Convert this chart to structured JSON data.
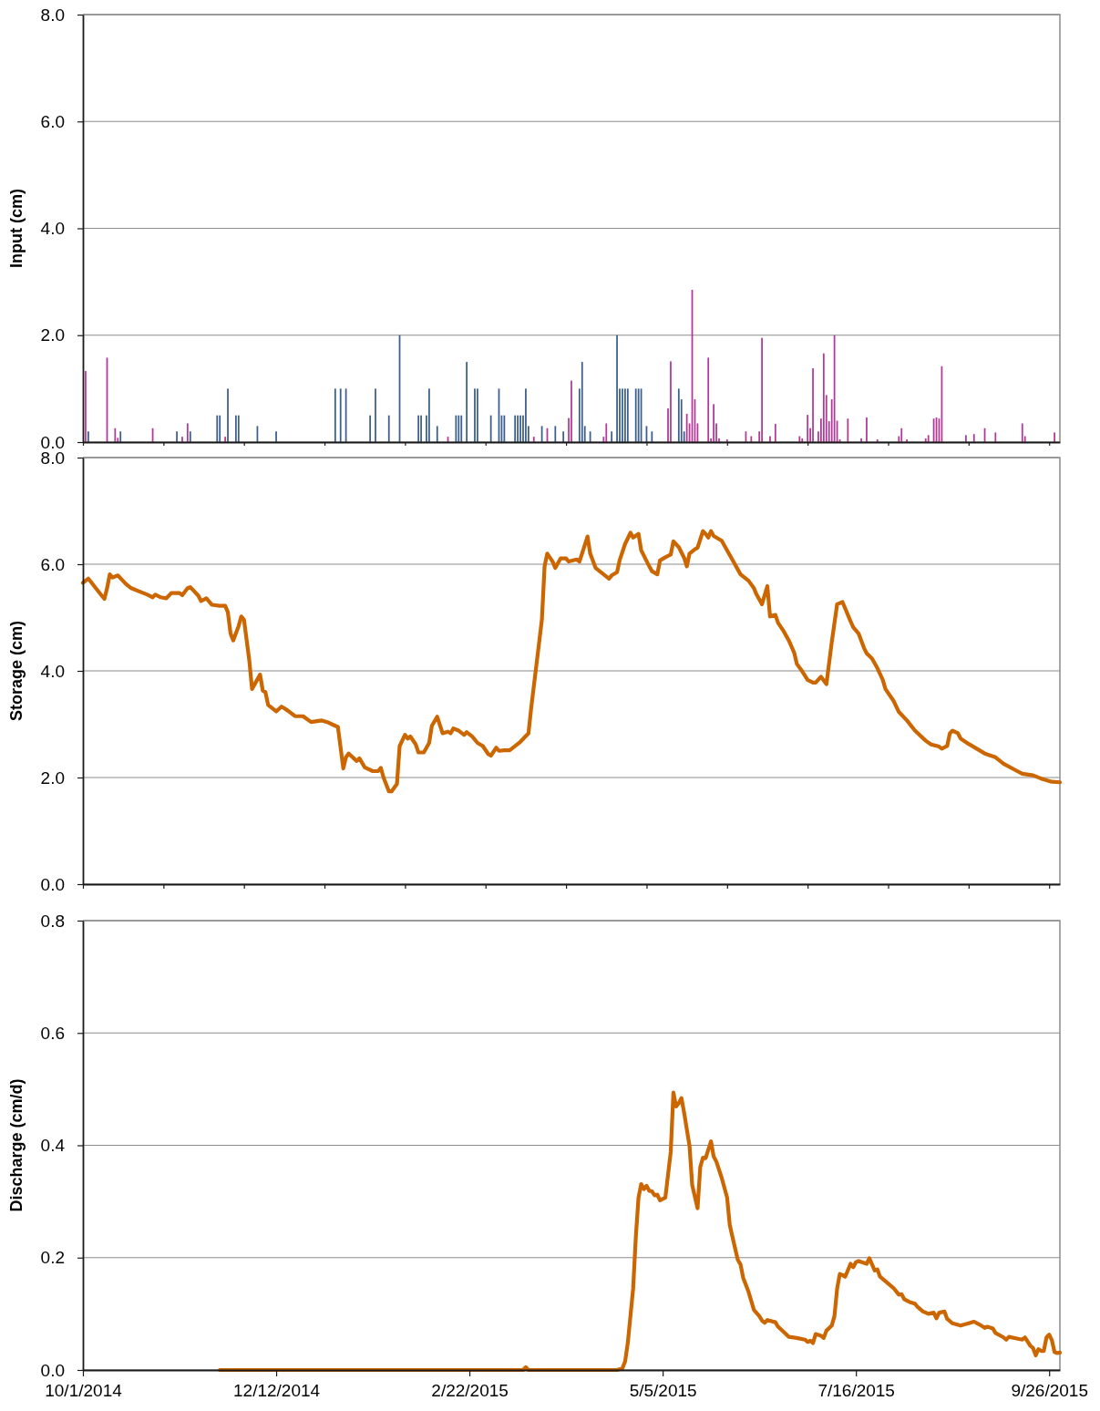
{
  "chart_data": [
    {
      "type": "bar",
      "ylabel": "Input (cm)",
      "xlim": [
        "2014-10-01",
        "2015-09-30"
      ],
      "xticks": [
        {
          "value": "2014-10-01",
          "label": null
        },
        {
          "value": "2014-10-31",
          "label": null
        },
        {
          "value": "2014-11-30",
          "label": null
        },
        {
          "value": "2014-12-30",
          "label": null
        },
        {
          "value": "2015-01-29",
          "label": null
        },
        {
          "value": "2015-02-28",
          "label": null
        },
        {
          "value": "2015-03-30",
          "label": null
        },
        {
          "value": "2015-04-29",
          "label": null
        },
        {
          "value": "2015-05-29",
          "label": null
        },
        {
          "value": "2015-06-28",
          "label": null
        },
        {
          "value": "2015-07-28",
          "label": null
        },
        {
          "value": "2015-08-27",
          "label": null
        },
        {
          "value": "2015-09-26",
          "label": null
        }
      ],
      "ylim": [
        0,
        8
      ],
      "yticks": [
        {
          "value": 0,
          "label": "0.0"
        },
        {
          "value": 2,
          "label": "2.0"
        },
        {
          "value": 4,
          "label": "4.0"
        },
        {
          "value": 6,
          "label": "6.0"
        },
        {
          "value": 8,
          "label": "8.0"
        }
      ],
      "grid": "y",
      "tick_labels": "y",
      "series": [
        {
          "color": "#3c5f8c",
          "x": [
            "2014-10-03",
            "2014-10-15",
            "2014-11-05",
            "2014-11-10",
            "2014-11-20",
            "2014-11-21",
            "2014-11-24",
            "2014-11-27",
            "2014-11-28",
            "2014-12-05",
            "2014-12-12",
            "2015-01-03",
            "2015-01-05",
            "2015-01-07",
            "2015-01-16",
            "2015-01-18",
            "2015-01-23",
            "2015-01-27",
            "2015-02-03",
            "2015-02-04",
            "2015-02-06",
            "2015-02-07",
            "2015-02-10",
            "2015-02-17",
            "2015-02-18",
            "2015-02-19",
            "2015-02-21",
            "2015-02-24",
            "2015-02-25",
            "2015-03-02",
            "2015-03-05",
            "2015-03-06",
            "2015-03-07",
            "2015-03-11",
            "2015-03-12",
            "2015-03-13",
            "2015-03-14",
            "2015-03-15",
            "2015-03-16",
            "2015-03-21",
            "2015-03-26",
            "2015-03-29",
            "2015-04-04",
            "2015-04-05",
            "2015-04-06",
            "2015-04-08",
            "2015-04-16",
            "2015-04-18",
            "2015-04-19",
            "2015-04-20",
            "2015-04-21",
            "2015-04-22",
            "2015-04-25",
            "2015-04-26",
            "2015-04-27",
            "2015-04-29",
            "2015-05-01",
            "2015-05-11",
            "2015-05-12",
            "2015-05-13"
          ],
          "values": [
            0.2,
            0.2,
            0.2,
            0.2,
            0.5,
            0.5,
            1.0,
            0.5,
            0.5,
            0.3,
            0.2,
            1.0,
            1.0,
            1.0,
            0.5,
            1.0,
            0.5,
            2.0,
            0.5,
            0.5,
            0.5,
            1.0,
            0.3,
            0.5,
            0.5,
            0.5,
            1.5,
            1.0,
            1.0,
            0.5,
            1.0,
            0.5,
            0.5,
            0.5,
            0.5,
            0.5,
            0.5,
            1.0,
            0.3,
            0.3,
            0.3,
            0.2,
            1.0,
            1.5,
            0.3,
            0.2,
            0.2,
            2.0,
            1.0,
            1.0,
            1.0,
            1.0,
            1.0,
            1.0,
            1.0,
            0.3,
            0.2,
            1.0,
            0.8,
            0.2
          ]
        },
        {
          "color": "#b03a96",
          "x": [
            "2014-10-02",
            "2014-10-10",
            "2014-10-13",
            "2014-10-14",
            "2014-10-27",
            "2014-11-07",
            "2014-11-09",
            "2014-11-23",
            "2015-02-14",
            "2015-03-18",
            "2015-03-23",
            "2015-03-31",
            "2015-04-01",
            "2015-04-13",
            "2015-04-14",
            "2015-05-07",
            "2015-05-08",
            "2015-05-14",
            "2015-05-15",
            "2015-05-16",
            "2015-05-17",
            "2015-05-18",
            "2015-05-22",
            "2015-05-23",
            "2015-05-24",
            "2015-05-25",
            "2015-05-26",
            "2015-05-29",
            "2015-06-05",
            "2015-06-07",
            "2015-06-10",
            "2015-06-11",
            "2015-06-14",
            "2015-06-16",
            "2015-06-25",
            "2015-06-26",
            "2015-06-28",
            "2015-06-29",
            "2015-06-30",
            "2015-07-02",
            "2015-07-03",
            "2015-07-04",
            "2015-07-05",
            "2015-07-06",
            "2015-07-07",
            "2015-07-08",
            "2015-07-09",
            "2015-07-10",
            "2015-07-13",
            "2015-07-18",
            "2015-07-20",
            "2015-07-24",
            "2015-08-01",
            "2015-08-02",
            "2015-08-04",
            "2015-08-11",
            "2015-08-12",
            "2015-08-14",
            "2015-08-15",
            "2015-08-16",
            "2015-08-17",
            "2015-08-26",
            "2015-08-29",
            "2015-09-02",
            "2015-09-06",
            "2015-09-16",
            "2015-09-17",
            "2015-09-28"
          ],
          "values": [
            1.33,
            1.58,
            0.26,
            0.08,
            0.26,
            0.1,
            0.35,
            0.1,
            0.1,
            0.1,
            0.26,
            0.45,
            1.15,
            0.1,
            0.35,
            0.63,
            1.51,
            0.53,
            0.35,
            2.85,
            0.8,
            0.35,
            1.58,
            0.07,
            0.71,
            0.35,
            0.07,
            0.05,
            0.2,
            0.11,
            0.2,
            1.95,
            0.11,
            0.34,
            0.11,
            0.07,
            0.51,
            0.26,
            1.38,
            0.2,
            0.44,
            1.66,
            0.88,
            0.39,
            0.8,
            2.0,
            0.4,
            0.05,
            0.44,
            0.07,
            0.46,
            0.05,
            0.11,
            0.26,
            0.05,
            0.07,
            0.13,
            0.44,
            0.46,
            0.44,
            1.42,
            0.13,
            0.15,
            0.26,
            0.18,
            0.35,
            0.11,
            0.18
          ]
        }
      ]
    },
    {
      "type": "line",
      "ylabel": "Storage (cm)",
      "xlim": [
        "2014-10-01",
        "2015-09-30"
      ],
      "xticks": [
        {
          "value": "2014-10-01",
          "label": null
        },
        {
          "value": "2014-10-31",
          "label": null
        },
        {
          "value": "2014-11-30",
          "label": null
        },
        {
          "value": "2014-12-30",
          "label": null
        },
        {
          "value": "2015-01-29",
          "label": null
        },
        {
          "value": "2015-02-28",
          "label": null
        },
        {
          "value": "2015-03-30",
          "label": null
        },
        {
          "value": "2015-04-29",
          "label": null
        },
        {
          "value": "2015-05-29",
          "label": null
        },
        {
          "value": "2015-06-28",
          "label": null
        },
        {
          "value": "2015-07-28",
          "label": null
        },
        {
          "value": "2015-08-27",
          "label": null
        },
        {
          "value": "2015-09-26",
          "label": null
        }
      ],
      "ylim": [
        0,
        8
      ],
      "yticks": [
        {
          "value": 0,
          "label": "0.0"
        },
        {
          "value": 2,
          "label": "2.0"
        },
        {
          "value": 4,
          "label": "4.0"
        },
        {
          "value": 6,
          "label": "6.0"
        },
        {
          "value": 8,
          "label": "8.0"
        }
      ],
      "grid": "y",
      "tick_labels": "y",
      "x": [
        "2014-10-01",
        "2014-10-03",
        "2014-10-08",
        "2014-10-09",
        "2014-10-10",
        "2014-10-11",
        "2014-10-12",
        "2014-10-14",
        "2014-10-17",
        "2014-10-19",
        "2014-10-22",
        "2014-10-25",
        "2014-10-27",
        "2014-10-28",
        "2014-10-30",
        "2014-11-01",
        "2014-11-03",
        "2014-11-06",
        "2014-11-07",
        "2014-11-09",
        "2014-11-10",
        "2014-11-13",
        "2014-11-14",
        "2014-11-16",
        "2014-11-18",
        "2014-11-21",
        "2014-11-23",
        "2014-11-24",
        "2014-11-25",
        "2014-11-26",
        "2014-11-28",
        "2014-11-29",
        "2014-11-30",
        "2014-12-02",
        "2014-12-03",
        "2014-12-04",
        "2014-12-06",
        "2014-12-07",
        "2014-12-08",
        "2014-12-09",
        "2014-12-12",
        "2014-12-14",
        "2014-12-15",
        "2014-12-17",
        "2014-12-19",
        "2014-12-22",
        "2014-12-25",
        "2014-12-29",
        "2014-12-31",
        "2015-01-03",
        "2015-01-04",
        "2015-01-06",
        "2015-01-07",
        "2015-01-08",
        "2015-01-11",
        "2015-01-12",
        "2015-01-14",
        "2015-01-17",
        "2015-01-19",
        "2015-01-20",
        "2015-01-21",
        "2015-01-23",
        "2015-01-24",
        "2015-01-26",
        "2015-01-27",
        "2015-01-29",
        "2015-01-30",
        "2015-01-31",
        "2015-02-02",
        "2015-02-03",
        "2015-02-05",
        "2015-02-07",
        "2015-02-08",
        "2015-02-10",
        "2015-02-12",
        "2015-02-14",
        "2015-02-15",
        "2015-02-16",
        "2015-02-18",
        "2015-02-20",
        "2015-02-21",
        "2015-02-23",
        "2015-02-25",
        "2015-02-27",
        "2015-03-01",
        "2015-03-02",
        "2015-03-04",
        "2015-03-05",
        "2015-03-07",
        "2015-03-09",
        "2015-03-13",
        "2015-03-16",
        "2015-03-17",
        "2015-03-19",
        "2015-03-21",
        "2015-03-22",
        "2015-03-23",
        "2015-03-25",
        "2015-03-26",
        "2015-03-28",
        "2015-03-30",
        "2015-03-31",
        "2015-04-03",
        "2015-04-04",
        "2015-04-07",
        "2015-04-08",
        "2015-04-10",
        "2015-04-13",
        "2015-04-15",
        "2015-04-16",
        "2015-04-18",
        "2015-04-19",
        "2015-04-21",
        "2015-04-23",
        "2015-04-24",
        "2015-04-26",
        "2015-04-27",
        "2015-04-30",
        "2015-05-01",
        "2015-05-03",
        "2015-05-04",
        "2015-05-06",
        "2015-05-08",
        "2015-05-09",
        "2015-05-11",
        "2015-05-13",
        "2015-05-14",
        "2015-05-15",
        "2015-05-17",
        "2015-05-18",
        "2015-05-20",
        "2015-05-21",
        "2015-05-22",
        "2015-05-23",
        "2015-05-24",
        "2015-05-27",
        "2015-05-29",
        "2015-05-31",
        "2015-06-03",
        "2015-06-06",
        "2015-06-08",
        "2015-06-09",
        "2015-06-11",
        "2015-06-13",
        "2015-06-14",
        "2015-06-16",
        "2015-06-17",
        "2015-06-19",
        "2015-06-21",
        "2015-06-23",
        "2015-06-24",
        "2015-06-26",
        "2015-06-28",
        "2015-06-30",
        "2015-07-01",
        "2015-07-03",
        "2015-07-05",
        "2015-07-07",
        "2015-07-09",
        "2015-07-11",
        "2015-07-12",
        "2015-07-14",
        "2015-07-15",
        "2015-07-17",
        "2015-07-19",
        "2015-07-20",
        "2015-07-22",
        "2015-07-24",
        "2015-07-26",
        "2015-07-27",
        "2015-07-30",
        "2015-08-01",
        "2015-08-04",
        "2015-08-07",
        "2015-08-11",
        "2015-08-13",
        "2015-08-16",
        "2015-08-17",
        "2015-08-19",
        "2015-08-20",
        "2015-08-21",
        "2015-08-23",
        "2015-08-24",
        "2015-08-27",
        "2015-08-30",
        "2015-09-02",
        "2015-09-06",
        "2015-09-09",
        "2015-09-13",
        "2015-09-16",
        "2015-09-20",
        "2015-09-23",
        "2015-09-27",
        "2015-09-30"
      ],
      "series": [
        {
          "color": "#cc6600",
          "values": [
            5.65,
            5.73,
            5.41,
            5.35,
            5.55,
            5.81,
            5.75,
            5.79,
            5.63,
            5.55,
            5.49,
            5.43,
            5.38,
            5.43,
            5.38,
            5.36,
            5.46,
            5.46,
            5.42,
            5.55,
            5.57,
            5.41,
            5.31,
            5.36,
            5.24,
            5.22,
            5.22,
            5.1,
            4.7,
            4.57,
            4.84,
            5.02,
            4.96,
            4.19,
            3.66,
            3.75,
            3.93,
            3.63,
            3.6,
            3.36,
            3.24,
            3.33,
            3.3,
            3.23,
            3.15,
            3.15,
            3.04,
            3.07,
            3.04,
            2.97,
            2.95,
            2.17,
            2.38,
            2.45,
            2.31,
            2.36,
            2.19,
            2.12,
            2.12,
            2.18,
            2.0,
            1.74,
            1.74,
            1.88,
            2.59,
            2.8,
            2.73,
            2.77,
            2.62,
            2.47,
            2.47,
            2.65,
            2.97,
            3.14,
            2.83,
            2.86,
            2.83,
            2.92,
            2.88,
            2.8,
            2.85,
            2.77,
            2.65,
            2.59,
            2.44,
            2.41,
            2.56,
            2.5,
            2.51,
            2.51,
            2.67,
            2.83,
            3.3,
            4.13,
            4.96,
            5.96,
            6.2,
            6.05,
            5.93,
            6.11,
            6.11,
            6.05,
            6.09,
            6.05,
            6.52,
            6.2,
            5.93,
            5.81,
            5.73,
            5.79,
            5.85,
            6.08,
            6.38,
            6.59,
            6.5,
            6.57,
            6.26,
            5.96,
            5.87,
            5.81,
            6.07,
            6.13,
            6.18,
            6.43,
            6.32,
            6.12,
            5.96,
            6.2,
            6.28,
            6.31,
            6.62,
            6.57,
            6.5,
            6.62,
            6.53,
            6.44,
            6.26,
            6.08,
            5.81,
            5.69,
            5.55,
            5.43,
            5.25,
            5.59,
            5.02,
            5.05,
            4.9,
            4.75,
            4.57,
            4.34,
            4.13,
            3.99,
            3.83,
            3.78,
            3.78,
            3.89,
            3.75,
            4.54,
            5.25,
            5.29,
            5.17,
            4.93,
            4.82,
            4.7,
            4.43,
            4.33,
            4.23,
            4.05,
            3.83,
            3.66,
            3.44,
            3.23,
            3.07,
            2.88,
            2.69,
            2.62,
            2.58,
            2.54,
            2.59,
            2.83,
            2.88,
            2.83,
            2.73,
            2.63,
            2.54,
            2.45,
            2.38,
            2.26,
            2.15,
            2.07,
            2.04,
            1.98,
            1.92,
            1.91
          ]
        }
      ]
    },
    {
      "type": "line",
      "ylabel": "Discharge (cm/d)",
      "xlim": [
        "2014-10-01",
        "2015-09-30"
      ],
      "xticks": [
        {
          "value": "2014-10-01",
          "label": "10/1/2014"
        },
        {
          "value": "2014-12-12",
          "label": "12/12/2014"
        },
        {
          "value": "2015-02-22",
          "label": "2/22/2015"
        },
        {
          "value": "2015-05-05",
          "label": "5/5/2015"
        },
        {
          "value": "2015-07-16",
          "label": "7/16/2015"
        },
        {
          "value": "2015-09-26",
          "label": "9/26/2015"
        }
      ],
      "ylim": [
        0,
        0.8
      ],
      "yticks": [
        {
          "value": 0,
          "label": "0.0"
        },
        {
          "value": 0.2,
          "label": "0.2"
        },
        {
          "value": 0.4,
          "label": "0.4"
        },
        {
          "value": 0.6,
          "label": "0.6"
        },
        {
          "value": 0.8,
          "label": "0.8"
        }
      ],
      "grid": "y",
      "x": [
        "2014-11-21",
        "2015-03-14",
        "2015-03-15",
        "2015-03-16",
        "2015-04-18",
        "2015-04-20",
        "2015-04-21",
        "2015-04-22",
        "2015-04-24",
        "2015-04-25",
        "2015-04-26",
        "2015-04-27",
        "2015-04-28",
        "2015-04-29",
        "2015-04-30",
        "2015-05-01",
        "2015-05-02",
        "2015-05-03",
        "2015-05-04",
        "2015-05-06",
        "2015-05-08",
        "2015-05-09",
        "2015-05-10",
        "2015-05-11",
        "2015-05-12",
        "2015-05-13",
        "2015-05-15",
        "2015-05-16",
        "2015-05-18",
        "2015-05-19",
        "2015-05-20",
        "2015-05-21",
        "2015-05-23",
        "2015-05-24",
        "2015-05-25",
        "2015-05-27",
        "2015-05-29",
        "2015-05-30",
        "2015-05-31",
        "2015-06-02",
        "2015-06-03",
        "2015-06-04",
        "2015-06-06",
        "2015-06-08",
        "2015-06-10",
        "2015-06-11",
        "2015-06-12",
        "2015-06-13",
        "2015-06-16",
        "2015-06-17",
        "2015-06-19",
        "2015-06-21",
        "2015-06-24",
        "2015-06-27",
        "2015-06-28",
        "2015-06-29",
        "2015-06-30",
        "2015-07-01",
        "2015-07-03",
        "2015-07-04",
        "2015-07-05",
        "2015-07-07",
        "2015-07-08",
        "2015-07-09",
        "2015-07-10",
        "2015-07-11",
        "2015-07-12",
        "2015-07-14",
        "2015-07-15",
        "2015-07-16",
        "2015-07-17",
        "2015-07-20",
        "2015-07-21",
        "2015-07-22",
        "2015-07-23",
        "2015-07-24",
        "2015-07-25",
        "2015-07-27",
        "2015-07-29",
        "2015-07-30",
        "2015-08-01",
        "2015-08-02",
        "2015-08-03",
        "2015-08-05",
        "2015-08-07",
        "2015-08-08",
        "2015-08-10",
        "2015-08-12",
        "2015-08-14",
        "2015-08-15",
        "2015-08-16",
        "2015-08-18",
        "2015-08-19",
        "2015-08-21",
        "2015-08-24",
        "2015-08-27",
        "2015-08-29",
        "2015-08-31",
        "2015-09-02",
        "2015-09-03",
        "2015-09-05",
        "2015-09-06",
        "2015-09-09",
        "2015-09-10",
        "2015-09-11",
        "2015-09-14",
        "2015-09-16",
        "2015-09-17",
        "2015-09-19",
        "2015-09-20",
        "2015-09-21",
        "2015-09-22",
        "2015-09-23",
        "2015-09-24",
        "2015-09-25",
        "2015-09-26",
        "2015-09-27",
        "2015-09-28",
        "2015-09-29",
        "2015-09-30"
      ],
      "series": [
        {
          "color": "#cc6600",
          "values": [
            0,
            0,
            0.005,
            0,
            0,
            0.003,
            0.015,
            0.048,
            0.145,
            0.237,
            0.307,
            0.331,
            0.322,
            0.328,
            0.319,
            0.318,
            0.311,
            0.312,
            0.302,
            0.307,
            0.388,
            0.494,
            0.469,
            0.475,
            0.484,
            0.458,
            0.399,
            0.329,
            0.288,
            0.361,
            0.378,
            0.377,
            0.407,
            0.38,
            0.371,
            0.342,
            0.307,
            0.258,
            0.237,
            0.196,
            0.188,
            0.164,
            0.139,
            0.107,
            0.096,
            0.088,
            0.084,
            0.089,
            0.085,
            0.077,
            0.068,
            0.059,
            0.057,
            0.054,
            0.05,
            0.052,
            0.048,
            0.064,
            0.061,
            0.057,
            0.07,
            0.079,
            0.096,
            0.145,
            0.171,
            0.169,
            0.166,
            0.189,
            0.183,
            0.192,
            0.194,
            0.189,
            0.199,
            0.188,
            0.177,
            0.179,
            0.166,
            0.158,
            0.15,
            0.146,
            0.134,
            0.135,
            0.126,
            0.121,
            0.118,
            0.112,
            0.104,
            0.1,
            0.102,
            0.092,
            0.102,
            0.104,
            0.091,
            0.083,
            0.079,
            0.083,
            0.086,
            0.081,
            0.075,
            0.077,
            0.074,
            0.066,
            0.058,
            0.054,
            0.059,
            0.056,
            0.054,
            0.058,
            0.043,
            0.039,
            0.026,
            0.037,
            0.034,
            0.034,
            0.058,
            0.063,
            0.053,
            0.032,
            0.03,
            0.031
          ]
        }
      ]
    }
  ]
}
